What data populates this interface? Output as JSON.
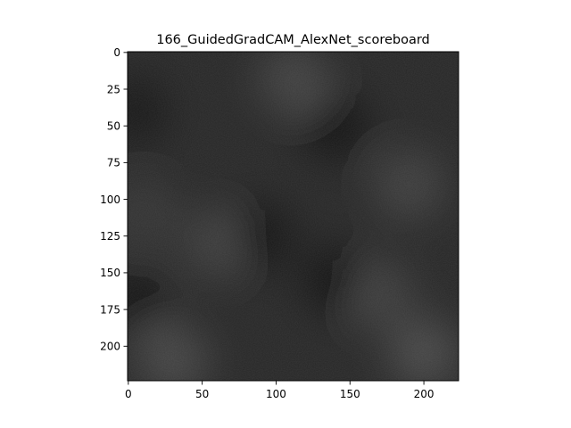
{
  "chart_data": {
    "type": "heatmap",
    "title": "166_GuidedGradCAM_AlexNet_scoreboard",
    "xlabel": "",
    "ylabel": "",
    "xlim": [
      0,
      224
    ],
    "ylim": [
      224,
      0
    ],
    "x_ticks": [
      0,
      50,
      100,
      150,
      200
    ],
    "y_ticks": [
      0,
      25,
      50,
      75,
      100,
      125,
      150,
      175,
      200
    ],
    "grid": false,
    "legend": "none",
    "colors": {
      "background": "#ffffff",
      "image_base": "#262626",
      "axis": "#000000"
    },
    "bright_regions": [
      {
        "x": 112,
        "y": 18,
        "level": 0.22
      },
      {
        "x": 30,
        "y": 210,
        "level": 0.25
      },
      {
        "x": 200,
        "y": 205,
        "level": 0.28
      },
      {
        "x": 190,
        "y": 90,
        "level": 0.2
      },
      {
        "x": 60,
        "y": 130,
        "level": 0.18
      },
      {
        "x": 170,
        "y": 165,
        "level": 0.18
      },
      {
        "x": 10,
        "y": 110,
        "level": 0.12
      }
    ],
    "dark_regions": [
      {
        "x": 140,
        "y": 50,
        "level": 0.9
      },
      {
        "x": 5,
        "y": 170,
        "level": 0.85
      },
      {
        "x": 90,
        "y": 125,
        "level": 0.8
      },
      {
        "x": 140,
        "y": 155,
        "level": 0.85
      },
      {
        "x": 5,
        "y": 40,
        "level": 0.7
      }
    ]
  }
}
